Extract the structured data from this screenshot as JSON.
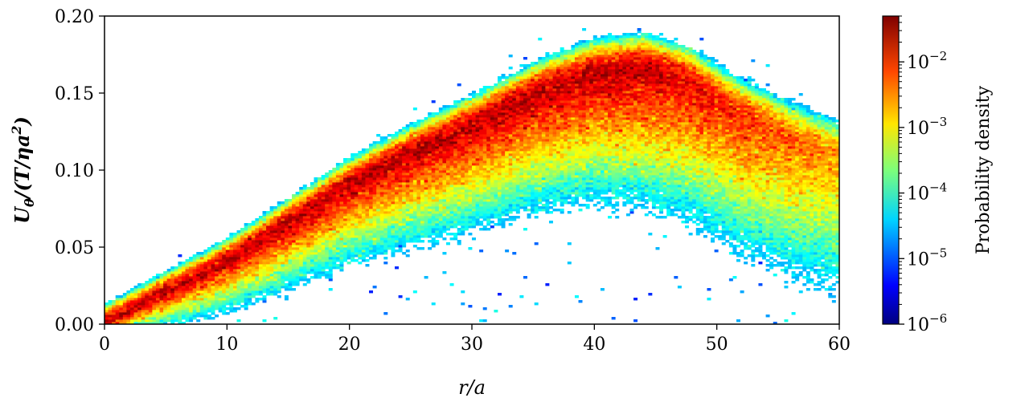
{
  "chart_data": {
    "type": "heatmap",
    "x_range": [
      0,
      60
    ],
    "y_range": [
      0,
      0.2
    ],
    "xlabel": "r/a",
    "ylabel_parts": {
      "u": "U",
      "theta": "θ",
      "mid": "/(T/ηa",
      "exp": "2",
      "end": ")"
    },
    "xticks": [
      "0",
      "10",
      "20",
      "30",
      "40",
      "50",
      "60"
    ],
    "xtick_values": [
      0,
      10,
      20,
      30,
      40,
      50,
      60
    ],
    "yticks": [
      "0.00",
      "0.05",
      "0.10",
      "0.15",
      "0.20"
    ],
    "ytick_values": [
      0,
      0.05,
      0.1,
      0.15,
      0.2
    ],
    "colorbar": {
      "label": "Probability density",
      "scale": "log",
      "range": [
        1e-06,
        0.05
      ],
      "ticks": [
        {
          "value": 0.01,
          "base": "10",
          "exp": "−2"
        },
        {
          "value": 0.001,
          "base": "10",
          "exp": "−3"
        },
        {
          "value": 0.0001,
          "base": "10",
          "exp": "−4"
        },
        {
          "value": 1e-05,
          "base": "10",
          "exp": "−5"
        },
        {
          "value": 1e-06,
          "base": "10",
          "exp": "−6"
        }
      ],
      "colormap": "jet"
    },
    "ridge": [
      [
        0,
        0.0
      ],
      [
        5,
        0.02
      ],
      [
        10,
        0.04
      ],
      [
        15,
        0.065
      ],
      [
        20,
        0.09
      ],
      [
        25,
        0.11
      ],
      [
        30,
        0.128
      ],
      [
        35,
        0.148
      ],
      [
        40,
        0.162
      ],
      [
        44,
        0.165
      ],
      [
        48,
        0.155
      ],
      [
        52,
        0.135
      ],
      [
        56,
        0.12
      ],
      [
        60,
        0.108
      ]
    ],
    "grid": false,
    "legend": "none"
  }
}
